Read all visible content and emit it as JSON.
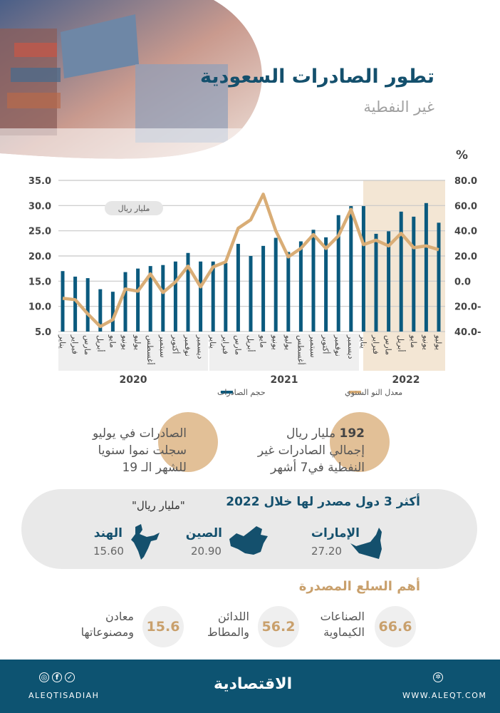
{
  "header": {
    "title": "تطور الصادرات السعودية",
    "subtitle": "غير النفطية"
  },
  "chart_data": {
    "type": "bar+line",
    "unit_label": "مليار ريال",
    "right_axis_unit": "%",
    "left_ylim": [
      5,
      35
    ],
    "left_ticks": [
      "35.0",
      "30.0",
      "25.0",
      "20.0",
      "15.0",
      "10.0",
      "5.0"
    ],
    "right_ylim": [
      -40,
      80
    ],
    "right_ticks": [
      "80.0",
      "60.0",
      "40.0",
      "20.0",
      "0.0",
      "20.0-",
      "40.0-"
    ],
    "grid": true,
    "months": [
      "يناير",
      "فبراير",
      "مارس",
      "أبريل",
      "مايو",
      "يونيو",
      "يوليو",
      "أغسطس",
      "سبتمبر",
      "أكتوبر",
      "نوفمبر",
      "ديسمبر",
      "يناير",
      "فبراير",
      "مارس",
      "أبريل",
      "مايو",
      "يونيو",
      "يوليو",
      "أغسطس",
      "سبتمبر",
      "أكتوبر",
      "نوفمبر",
      "ديسمبر",
      "يناير",
      "فبراير",
      "مارس",
      "أبريل",
      "مايو",
      "يونيو",
      "يوليو"
    ],
    "years": [
      "2020",
      "2021",
      "2022"
    ],
    "legend_placement": "bottom",
    "series": [
      {
        "name": "حجم الصادرات",
        "type": "bar",
        "axis": "left",
        "color": "#0b5a7e",
        "values": [
          17.0,
          15.9,
          15.6,
          13.4,
          12.9,
          16.8,
          17.5,
          18.0,
          18.2,
          18.9,
          20.6,
          18.9,
          18.9,
          18.6,
          22.4,
          20.0,
          22.0,
          23.6,
          20.8,
          22.9,
          25.2,
          23.7,
          28.1,
          29.9,
          29.9,
          24.4,
          24.9,
          28.8,
          27.8,
          30.5,
          26.6
        ]
      },
      {
        "name": "معدل النو السنوي",
        "type": "line",
        "axis": "right",
        "color": "#d9ad76",
        "values": [
          -13.6,
          -14.7,
          -26,
          -36,
          -30.6,
          -6.2,
          -7.9,
          5.7,
          -9,
          -0.6,
          11.9,
          -4.5,
          11.3,
          15.3,
          42,
          48.7,
          69,
          40,
          19.3,
          26,
          37,
          26,
          36,
          57,
          29,
          32.5,
          28,
          38,
          26.6,
          28,
          25
        ]
      }
    ]
  },
  "highlights": [
    {
      "lines": [
        "الصادرات في يوليو",
        "سجلت نموا سنويا",
        "للشهر الـ 19"
      ]
    },
    {
      "bold": "192",
      "lines": [
        "مليار ريال",
        "إجمالي الصادرات غير",
        "النفطية في7 أشهر"
      ]
    }
  ],
  "countries": {
    "title": "أكثر 3 دول مصدر لها خلال 2022",
    "unit": "\"مليار ريال\"",
    "items": [
      {
        "name": "الإمارات",
        "value": "27.20"
      },
      {
        "name": "الصين",
        "value": "20.90"
      },
      {
        "name": "الهند",
        "value": "15.60"
      }
    ]
  },
  "goods": {
    "title": "أهم السلع المصدرة",
    "items": [
      {
        "value": "66.6",
        "lines": [
          "الصناعات",
          "الكيماوية"
        ]
      },
      {
        "value": "56.2",
        "lines": [
          "اللدائن",
          "والمطاط"
        ]
      },
      {
        "value": "15.6",
        "lines": [
          "معادن",
          "ومصنوعاتها"
        ]
      }
    ]
  },
  "footer": {
    "social_handle": "ALEQTISADIAH",
    "logo": "الاقتصادية",
    "website": "WWW.ALEQT.COM"
  }
}
